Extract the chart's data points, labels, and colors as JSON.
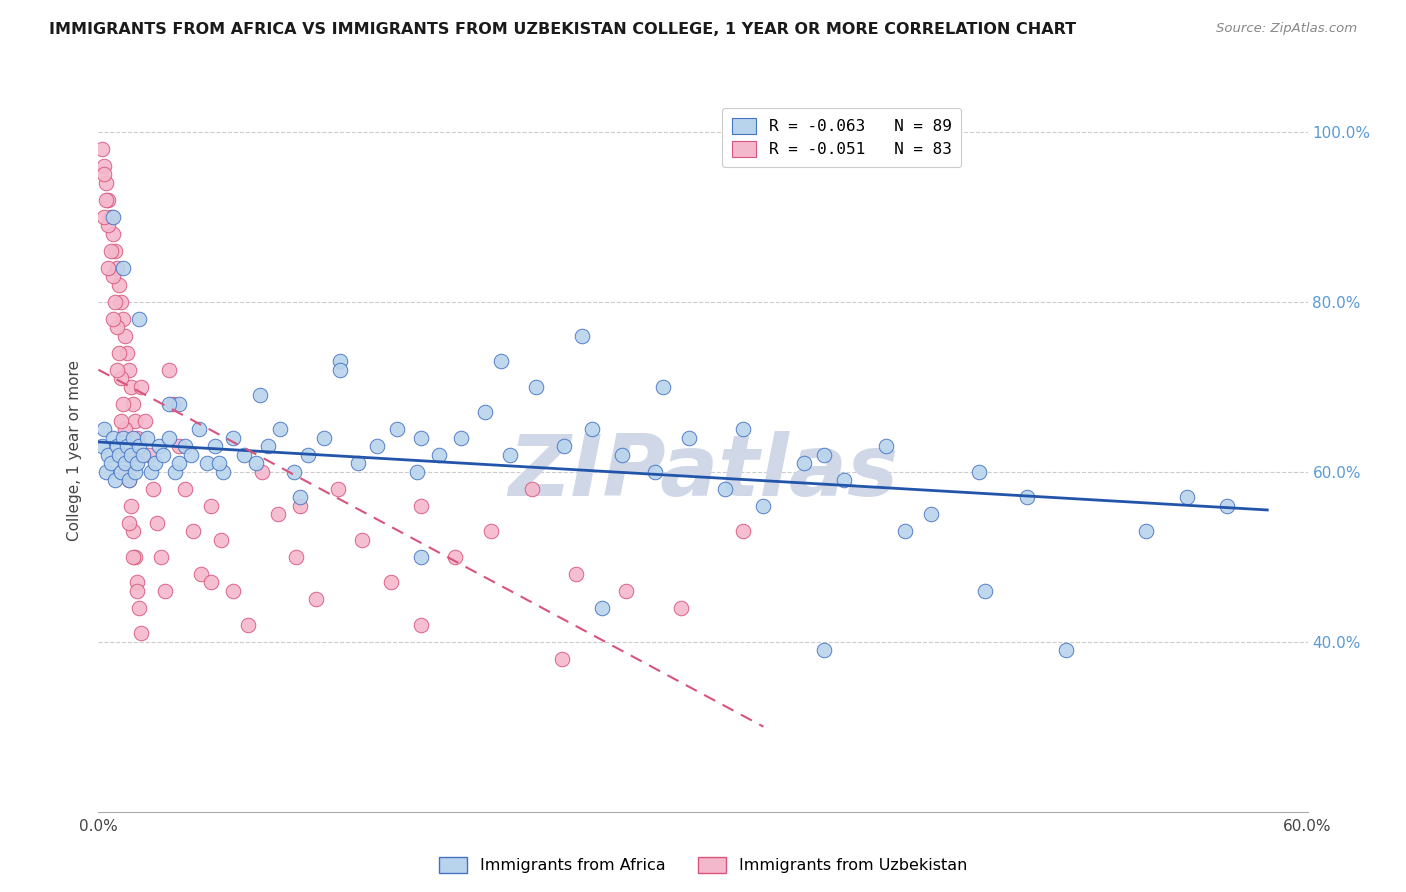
{
  "title": "IMMIGRANTS FROM AFRICA VS IMMIGRANTS FROM UZBEKISTAN COLLEGE, 1 YEAR OR MORE CORRELATION CHART",
  "source": "Source: ZipAtlas.com",
  "ylabel": "College, 1 year or more",
  "xlim": [
    0.0,
    0.6
  ],
  "ylim": [
    0.2,
    1.05
  ],
  "xticks": [
    0.0,
    0.1,
    0.2,
    0.3,
    0.4,
    0.5,
    0.6
  ],
  "xticklabels": [
    "0.0%",
    "",
    "",
    "",
    "",
    "",
    "60.0%"
  ],
  "yticks_right": [
    0.4,
    0.6,
    0.8,
    1.0
  ],
  "yticklabels_right": [
    "40.0%",
    "60.0%",
    "80.0%",
    "100.0%"
  ],
  "legend_label1": "Immigrants from Africa",
  "legend_label2": "Immigrants from Uzbekistan",
  "africa_color": "#b8d4ed",
  "africa_edge_color": "#4472c4",
  "uzbekistan_color": "#f4b8cc",
  "uzbekistan_edge_color": "#d9547a",
  "trendline_africa_color": "#2255aa",
  "trendline_uzbekistan_color": "#d9547a",
  "grid_color": "#cccccc",
  "background_color": "#ffffff",
  "watermark_text": "ZIPatlas",
  "watermark_color": "#d0d8e8",
  "africa_R": -0.063,
  "africa_N": 89,
  "uzbekistan_R": -0.051,
  "uzbekistan_N": 83,
  "africa_trend_x0": 0.0,
  "africa_trend_y0": 0.635,
  "africa_trend_x1": 0.58,
  "africa_trend_y1": 0.555,
  "uzb_trend_x0": 0.0,
  "uzb_trend_y0": 0.72,
  "uzb_trend_x1": 0.33,
  "uzb_trend_y1": 0.3,
  "africa_scatter_x": [
    0.002,
    0.003,
    0.004,
    0.005,
    0.006,
    0.007,
    0.008,
    0.009,
    0.01,
    0.011,
    0.012,
    0.013,
    0.014,
    0.015,
    0.016,
    0.017,
    0.018,
    0.019,
    0.02,
    0.022,
    0.024,
    0.026,
    0.028,
    0.03,
    0.032,
    0.035,
    0.038,
    0.04,
    0.043,
    0.046,
    0.05,
    0.054,
    0.058,
    0.062,
    0.067,
    0.072,
    0.078,
    0.084,
    0.09,
    0.097,
    0.104,
    0.112,
    0.12,
    0.129,
    0.138,
    0.148,
    0.158,
    0.169,
    0.18,
    0.192,
    0.204,
    0.217,
    0.231,
    0.245,
    0.26,
    0.276,
    0.293,
    0.311,
    0.33,
    0.35,
    0.37,
    0.391,
    0.413,
    0.437,
    0.461,
    0.04,
    0.08,
    0.12,
    0.16,
    0.2,
    0.24,
    0.28,
    0.32,
    0.36,
    0.4,
    0.44,
    0.48,
    0.52,
    0.007,
    0.012,
    0.02,
    0.035,
    0.06,
    0.1,
    0.16,
    0.25,
    0.36,
    0.54,
    0.56
  ],
  "africa_scatter_y": [
    0.63,
    0.65,
    0.6,
    0.62,
    0.61,
    0.64,
    0.59,
    0.63,
    0.62,
    0.6,
    0.64,
    0.61,
    0.63,
    0.59,
    0.62,
    0.64,
    0.6,
    0.61,
    0.63,
    0.62,
    0.64,
    0.6,
    0.61,
    0.63,
    0.62,
    0.64,
    0.6,
    0.61,
    0.63,
    0.62,
    0.65,
    0.61,
    0.63,
    0.6,
    0.64,
    0.62,
    0.61,
    0.63,
    0.65,
    0.6,
    0.62,
    0.64,
    0.73,
    0.61,
    0.63,
    0.65,
    0.6,
    0.62,
    0.64,
    0.67,
    0.62,
    0.7,
    0.63,
    0.65,
    0.62,
    0.6,
    0.64,
    0.58,
    0.56,
    0.61,
    0.59,
    0.63,
    0.55,
    0.6,
    0.57,
    0.68,
    0.69,
    0.72,
    0.64,
    0.73,
    0.76,
    0.7,
    0.65,
    0.62,
    0.53,
    0.46,
    0.39,
    0.53,
    0.9,
    0.84,
    0.78,
    0.68,
    0.61,
    0.57,
    0.5,
    0.44,
    0.39,
    0.57,
    0.56
  ],
  "uzbekistan_scatter_x": [
    0.002,
    0.003,
    0.004,
    0.005,
    0.006,
    0.007,
    0.008,
    0.009,
    0.01,
    0.011,
    0.012,
    0.013,
    0.014,
    0.015,
    0.016,
    0.017,
    0.018,
    0.019,
    0.02,
    0.003,
    0.004,
    0.005,
    0.006,
    0.007,
    0.008,
    0.009,
    0.01,
    0.011,
    0.012,
    0.013,
    0.014,
    0.015,
    0.016,
    0.017,
    0.018,
    0.019,
    0.02,
    0.021,
    0.003,
    0.005,
    0.007,
    0.009,
    0.011,
    0.013,
    0.015,
    0.017,
    0.019,
    0.021,
    0.023,
    0.025,
    0.027,
    0.029,
    0.031,
    0.033,
    0.035,
    0.037,
    0.04,
    0.043,
    0.047,
    0.051,
    0.056,
    0.061,
    0.067,
    0.074,
    0.081,
    0.089,
    0.098,
    0.108,
    0.119,
    0.131,
    0.145,
    0.16,
    0.177,
    0.195,
    0.215,
    0.237,
    0.262,
    0.289,
    0.32,
    0.056,
    0.1,
    0.16,
    0.23
  ],
  "uzbekistan_scatter_y": [
    0.98,
    0.96,
    0.94,
    0.92,
    0.9,
    0.88,
    0.86,
    0.84,
    0.82,
    0.8,
    0.78,
    0.76,
    0.74,
    0.72,
    0.7,
    0.68,
    0.66,
    0.64,
    0.62,
    0.95,
    0.92,
    0.89,
    0.86,
    0.83,
    0.8,
    0.77,
    0.74,
    0.71,
    0.68,
    0.65,
    0.62,
    0.59,
    0.56,
    0.53,
    0.5,
    0.47,
    0.44,
    0.41,
    0.9,
    0.84,
    0.78,
    0.72,
    0.66,
    0.6,
    0.54,
    0.5,
    0.46,
    0.7,
    0.66,
    0.62,
    0.58,
    0.54,
    0.5,
    0.46,
    0.72,
    0.68,
    0.63,
    0.58,
    0.53,
    0.48,
    0.56,
    0.52,
    0.46,
    0.42,
    0.6,
    0.55,
    0.5,
    0.45,
    0.58,
    0.52,
    0.47,
    0.56,
    0.5,
    0.53,
    0.58,
    0.48,
    0.46,
    0.44,
    0.53,
    0.47,
    0.56,
    0.42,
    0.38
  ]
}
